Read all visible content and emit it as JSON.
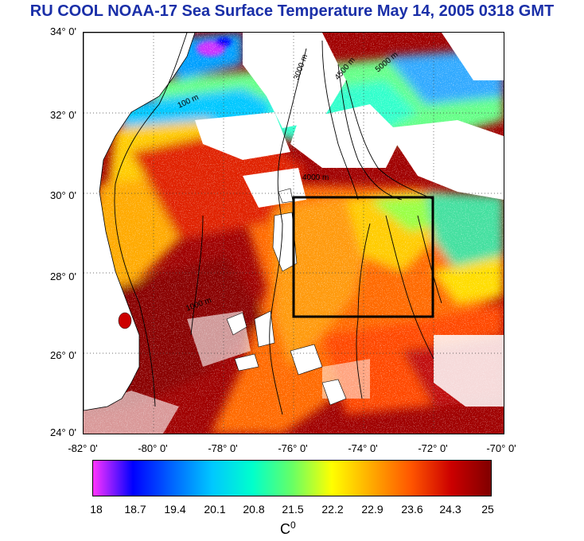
{
  "title": "RU COOL  NOAA-17 Sea Surface Temperature May 14, 2005 0318 GMT",
  "axes": {
    "lat_labels": [
      "34° 0'",
      "32° 0'",
      "30° 0'",
      "28° 0'",
      "26° 0'",
      "24° 0'"
    ],
    "lon_labels": [
      "-82° 0'",
      "-80° 0'",
      "-78° 0'",
      "-76° 0'",
      "-74° 0'",
      "-72° 0'",
      "-70° 0'"
    ]
  },
  "colorbar": {
    "unit": "C",
    "unit_sup": "0",
    "ticks": [
      "18",
      "18.7",
      "19.4",
      "20.1",
      "20.8",
      "21.5",
      "22.2",
      "22.9",
      "23.6",
      "24.3",
      "25"
    ],
    "colors": [
      "#ff33ff",
      "#0000ff",
      "#0066ff",
      "#00c8ff",
      "#00ffcc",
      "#66ff66",
      "#ffff00",
      "#ffaa00",
      "#ff5500",
      "#cc0000",
      "#800000"
    ]
  },
  "contours": [
    {
      "label": "100 m"
    },
    {
      "label": "1000 m"
    },
    {
      "label": "3000 m"
    },
    {
      "label": "4000 m"
    },
    {
      "label": "4500 m"
    },
    {
      "label": "5000 m"
    }
  ],
  "study_box": {
    "lon_min": -76,
    "lon_max": -72,
    "lat_min": 27,
    "lat_max": 30
  }
}
